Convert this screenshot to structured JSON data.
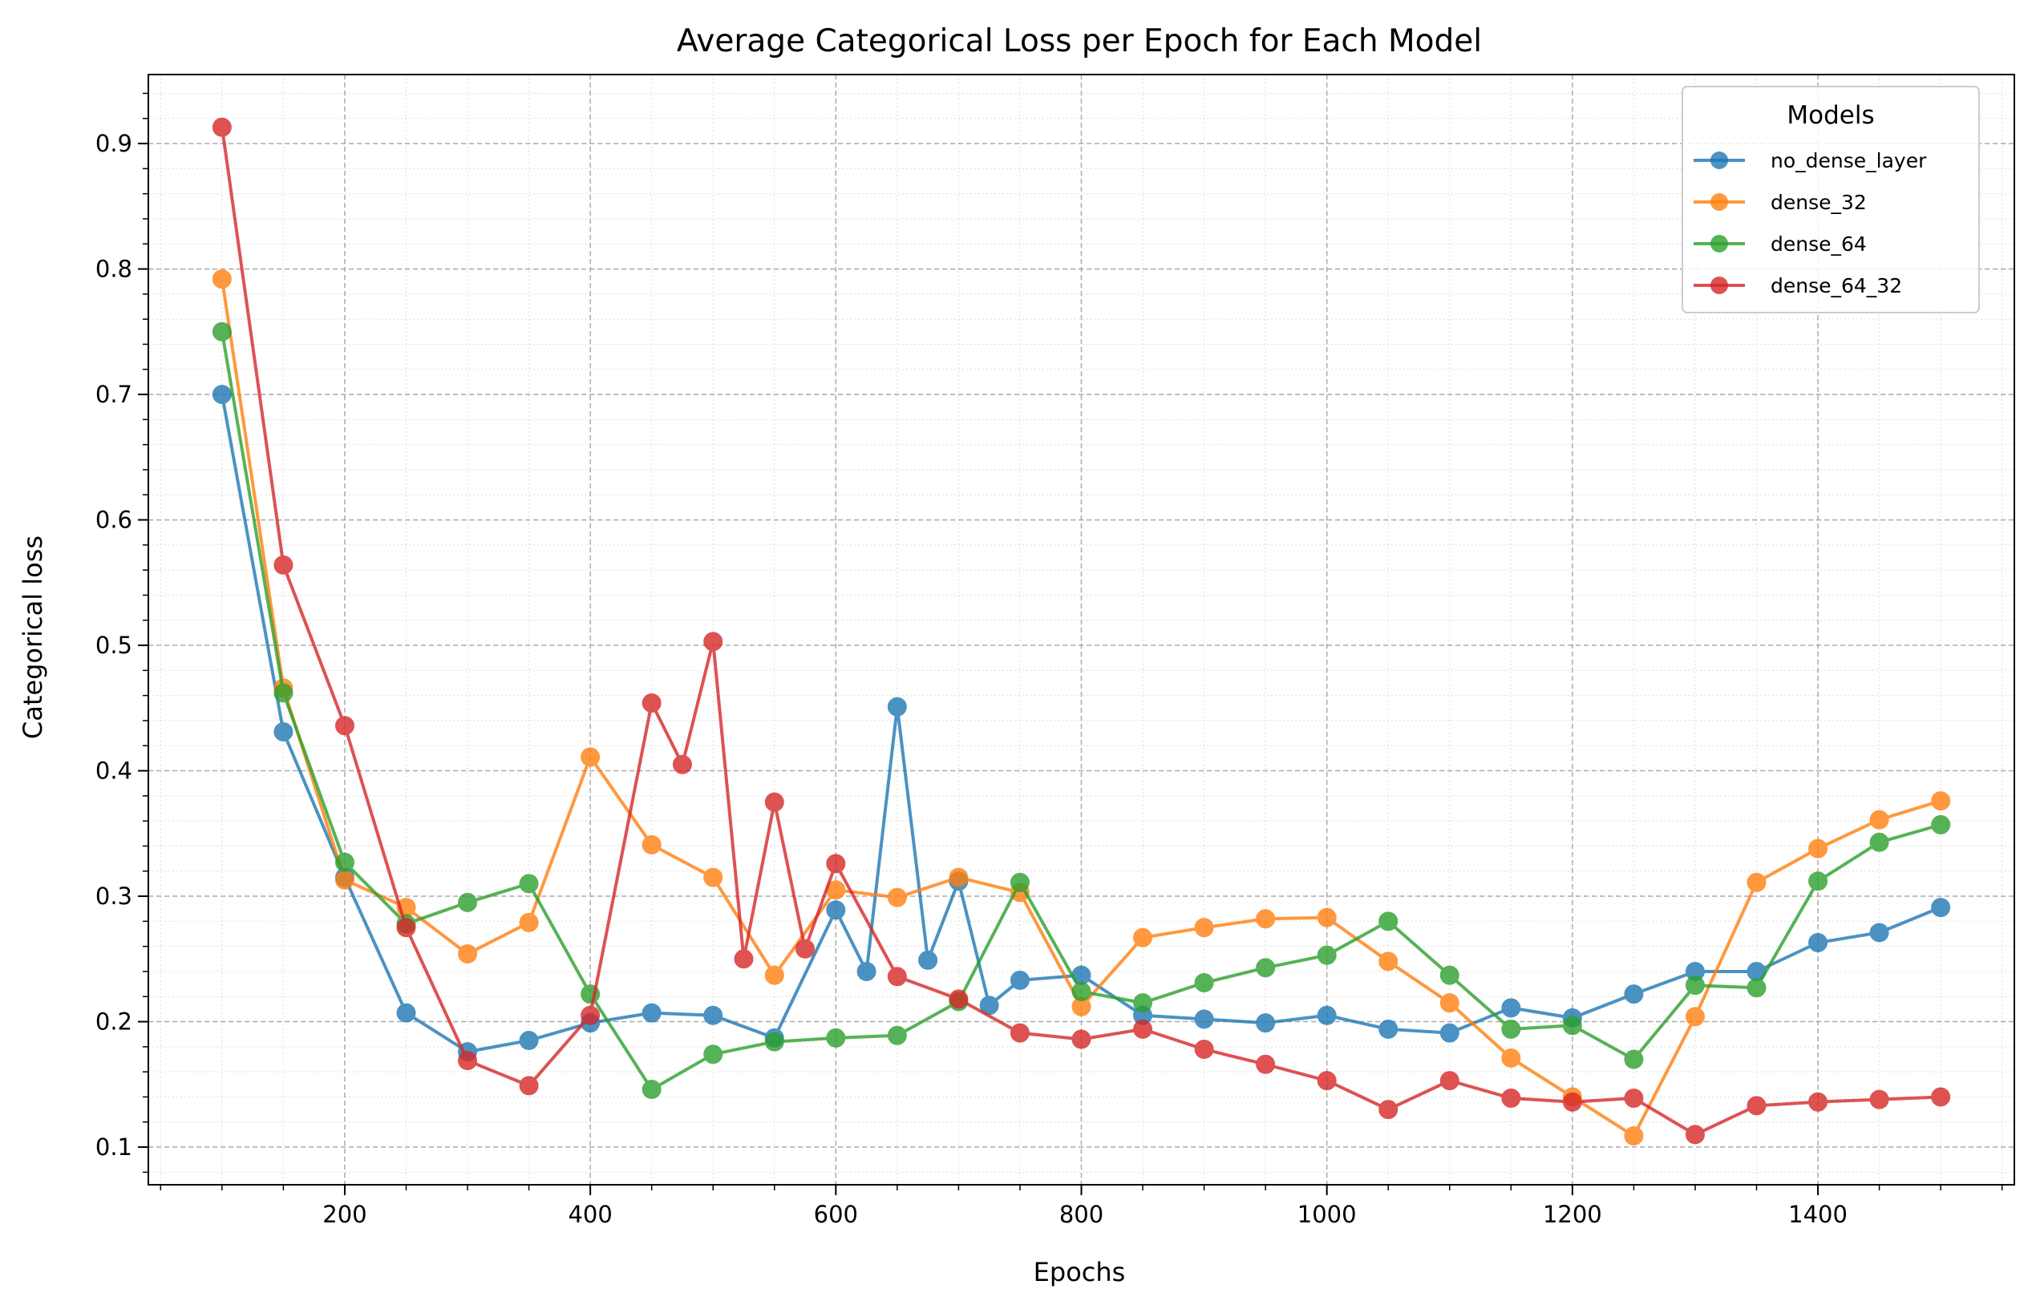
{
  "chart_data": {
    "type": "line",
    "title": "Average Categorical Loss per Epoch for Each Model",
    "xlabel": "Epochs",
    "ylabel": "Categorical loss",
    "xlim": [
      40,
      1560
    ],
    "ylim": [
      0.07,
      0.955
    ],
    "xticks": [
      200,
      400,
      600,
      800,
      1000,
      1200,
      1400
    ],
    "yticks": [
      0.1,
      0.2,
      0.3,
      0.4,
      0.5,
      0.6,
      0.7,
      0.8,
      0.9
    ],
    "grid": true,
    "legend": {
      "title": "Models",
      "position": "top-right"
    },
    "series": [
      {
        "name": "no_dense_layer",
        "color": "#1f77b4",
        "x": [
          100,
          150,
          200,
          250,
          300,
          350,
          400,
          450,
          500,
          550,
          600,
          625,
          650,
          675,
          700,
          725,
          750,
          800,
          850,
          900,
          950,
          1000,
          1050,
          1100,
          1150,
          1200,
          1250,
          1300,
          1350,
          1400,
          1450,
          1500
        ],
        "y": [
          0.7,
          0.431,
          0.315,
          0.207,
          0.176,
          0.185,
          0.199,
          0.207,
          0.205,
          0.187,
          0.289,
          0.24,
          0.451,
          0.249,
          0.312,
          0.213,
          0.233,
          0.237,
          0.205,
          0.202,
          0.199,
          0.205,
          0.194,
          0.191,
          0.211,
          0.203,
          0.222,
          0.24,
          0.24,
          0.263,
          0.271,
          0.291
        ]
      },
      {
        "name": "dense_32",
        "color": "#ff7f0e",
        "x": [
          100,
          150,
          200,
          250,
          300,
          350,
          400,
          450,
          500,
          550,
          600,
          650,
          700,
          750,
          800,
          850,
          900,
          950,
          1000,
          1050,
          1100,
          1150,
          1200,
          1250,
          1300,
          1350,
          1400,
          1450,
          1500
        ],
        "y": [
          0.792,
          0.466,
          0.313,
          0.291,
          0.254,
          0.279,
          0.411,
          0.341,
          0.315,
          0.237,
          0.305,
          0.299,
          0.315,
          0.303,
          0.212,
          0.267,
          0.275,
          0.282,
          0.283,
          0.248,
          0.215,
          0.171,
          0.14,
          0.109,
          0.204,
          0.311,
          0.338,
          0.361,
          0.376
        ]
      },
      {
        "name": "dense_64",
        "color": "#2ca02c",
        "x": [
          100,
          150,
          200,
          250,
          300,
          350,
          400,
          450,
          500,
          550,
          600,
          650,
          700,
          750,
          800,
          850,
          900,
          950,
          1000,
          1050,
          1100,
          1150,
          1200,
          1250,
          1300,
          1350,
          1400,
          1450,
          1500
        ],
        "y": [
          0.75,
          0.462,
          0.327,
          0.278,
          0.295,
          0.31,
          0.222,
          0.146,
          0.174,
          0.184,
          0.187,
          0.189,
          0.216,
          0.311,
          0.224,
          0.215,
          0.231,
          0.243,
          0.253,
          0.28,
          0.237,
          0.194,
          0.197,
          0.17,
          0.229,
          0.227,
          0.312,
          0.343,
          0.357
        ]
      },
      {
        "name": "dense_64_32",
        "color": "#d62728",
        "x": [
          100,
          150,
          200,
          250,
          300,
          350,
          400,
          450,
          475,
          500,
          525,
          550,
          575,
          600,
          650,
          700,
          750,
          800,
          850,
          900,
          950,
          1000,
          1050,
          1100,
          1150,
          1200,
          1250,
          1300,
          1350,
          1400,
          1450,
          1500
        ],
        "y": [
          0.913,
          0.564,
          0.436,
          0.275,
          0.169,
          0.149,
          0.205,
          0.454,
          0.405,
          0.503,
          0.25,
          0.375,
          0.258,
          0.326,
          0.236,
          0.218,
          0.191,
          0.186,
          0.194,
          0.178,
          0.166,
          0.153,
          0.13,
          0.153,
          0.139,
          0.136,
          0.139,
          0.11,
          0.133,
          0.136,
          0.138,
          0.14
        ]
      }
    ]
  }
}
